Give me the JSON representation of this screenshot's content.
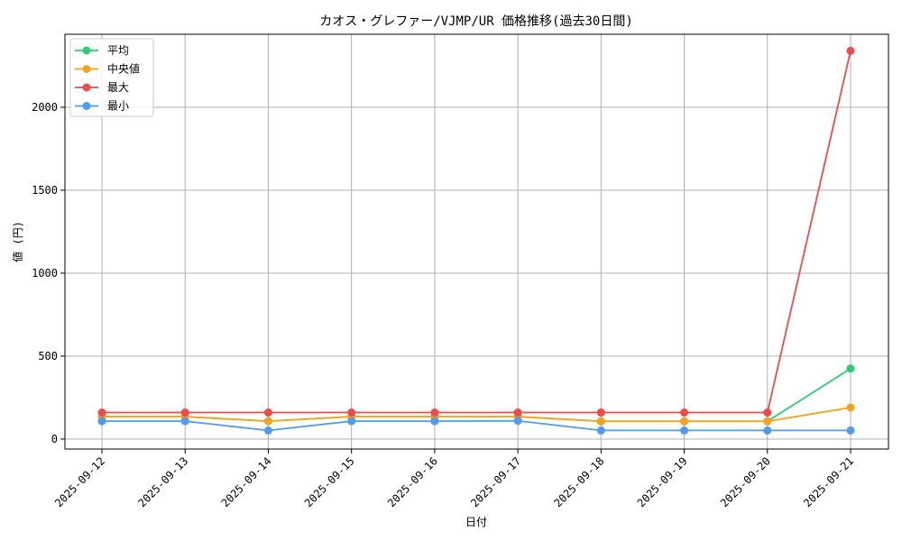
{
  "chart_data": {
    "type": "line",
    "title": "カオス・グレファー/VJMP/UR 価格推移(過去30日間)",
    "xlabel": "日付",
    "ylabel": "値 (円)",
    "categories": [
      "2025-09-12",
      "2025-09-13",
      "2025-09-14",
      "2025-09-15",
      "2025-09-16",
      "2025-09-17",
      "2025-09-18",
      "2025-09-19",
      "2025-09-20",
      "2025-09-21"
    ],
    "yticks": [
      0,
      500,
      1000,
      1500,
      2000
    ],
    "ylim": [
      -60,
      2440
    ],
    "grid": true,
    "legend_position": "top-left",
    "series": [
      {
        "name": "平均",
        "color": "#2ecc71",
        "values": [
          135,
          135,
          108,
          135,
          135,
          135,
          107,
          107,
          107,
          425
        ]
      },
      {
        "name": "中央値",
        "color": "#f5a31a",
        "values": [
          135,
          135,
          108,
          135,
          135,
          135,
          107,
          107,
          107,
          190
        ]
      },
      {
        "name": "最大",
        "color": "#ef4a4a",
        "values": [
          160,
          160,
          160,
          160,
          160,
          160,
          160,
          160,
          160,
          2340
        ]
      },
      {
        "name": "最小",
        "color": "#4e9bf0",
        "values": [
          108,
          108,
          52,
          108,
          108,
          110,
          52,
          52,
          52,
          52
        ]
      }
    ]
  }
}
